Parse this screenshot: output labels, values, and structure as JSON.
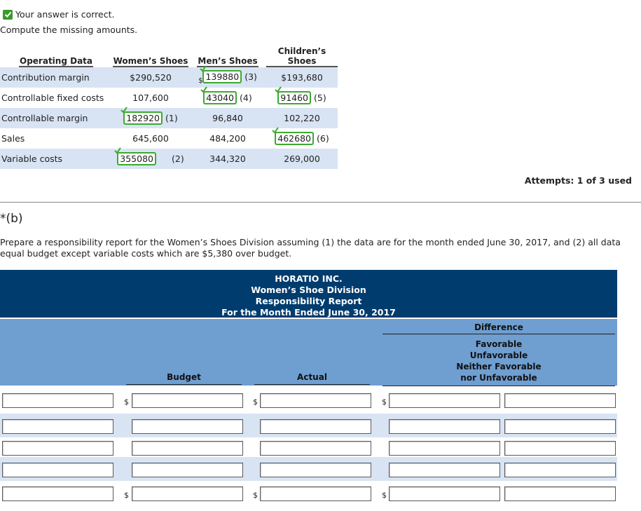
{
  "status": {
    "text": "Your answer is correct."
  },
  "instruction": "Compute the missing amounts.",
  "operating_table": {
    "headers": [
      "Operating Data",
      "Women’s Shoes",
      "Men’s Shoes",
      "Children’s Shoes"
    ],
    "rows": [
      {
        "label": "Contribution margin",
        "women": "$290,520",
        "men": {
          "value": "139880",
          "tag": "(3)",
          "dollar": "$"
        },
        "children": "$193,680"
      },
      {
        "label": "Controllable fixed costs",
        "women": "107,600",
        "men": {
          "value": "43040",
          "tag": "(4)"
        },
        "children": {
          "value": "91460",
          "tag": "(5)"
        }
      },
      {
        "label": "Controllable margin",
        "women": {
          "value": "182920",
          "tag": "(1)"
        },
        "men": "96,840",
        "children": "102,220"
      },
      {
        "label": "Sales",
        "women": "645,600",
        "men": "484,200",
        "children": {
          "value": "462680",
          "tag": "(6)"
        }
      },
      {
        "label": "Variable costs",
        "women": {
          "value": "355080",
          "tag": "(2)"
        },
        "men": "344,320",
        "children": "269,000"
      }
    ]
  },
  "attempts": "Attempts: 1 of 3 used",
  "part_b": {
    "label": "*(b)"
  },
  "prompt": "Prepare a responsibility report for the Women’s Shoes Division assuming (1) the data are for the month ended June 30, 2017, and (2) all data equal budget except variable costs which are $5,380 over budget.",
  "report": {
    "company": "HORATIO INC.",
    "division": "Women’s Shoe Division",
    "title": "Responsibility Report",
    "period": "For the Month Ended June 30, 2017",
    "col_budget": "Budget",
    "col_actual": "Actual",
    "col_difference": "Difference",
    "diff_sub": [
      "Favorable",
      "Unfavorable",
      "Neither Favorable",
      "nor Unfavorable"
    ],
    "dollar_sign": "$",
    "rows": 5
  },
  "colors": {
    "accent_dark": "#003c6e",
    "header_blue": "#6f9ed0",
    "row_shade": "#d8e4f3",
    "correct_green": "#3caa2e"
  }
}
